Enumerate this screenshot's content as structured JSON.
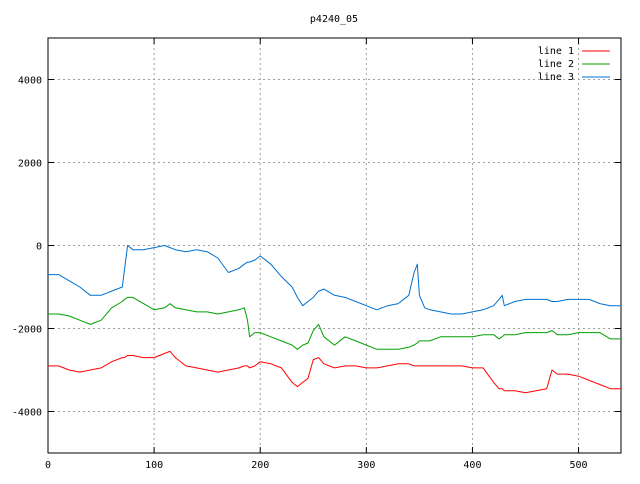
{
  "chart_data": {
    "type": "line",
    "title": "p4240_05",
    "xlabel": "",
    "ylabel": "",
    "xlim": [
      0,
      540
    ],
    "ylim": [
      -5000,
      5000
    ],
    "x_ticks": [
      0,
      100,
      200,
      300,
      400,
      500
    ],
    "y_ticks": [
      -4000,
      -2000,
      0,
      2000,
      4000
    ],
    "grid": true,
    "legend_position": "top-right",
    "x": [
      0,
      10,
      20,
      30,
      40,
      50,
      60,
      70,
      72,
      75,
      80,
      90,
      100,
      110,
      115,
      120,
      130,
      140,
      150,
      160,
      170,
      180,
      185,
      188,
      190,
      195,
      200,
      210,
      220,
      230,
      235,
      240,
      245,
      250,
      255,
      260,
      270,
      280,
      290,
      300,
      310,
      320,
      330,
      340,
      345,
      348,
      350,
      355,
      360,
      370,
      380,
      390,
      400,
      410,
      420,
      425,
      428,
      430,
      440,
      450,
      460,
      470,
      475,
      480,
      490,
      500,
      510,
      520,
      530,
      540
    ],
    "series": [
      {
        "name": "line 1",
        "color": "#ff0000",
        "values": [
          -2900,
          -2900,
          -3000,
          -3050,
          -3000,
          -2950,
          -2800,
          -2700,
          -2700,
          -2650,
          -2650,
          -2700,
          -2700,
          -2600,
          -2550,
          -2700,
          -2900,
          -2950,
          -3000,
          -3050,
          -3000,
          -2950,
          -2900,
          -2900,
          -2950,
          -2900,
          -2800,
          -2850,
          -2950,
          -3300,
          -3400,
          -3300,
          -3200,
          -2750,
          -2700,
          -2850,
          -2950,
          -2900,
          -2900,
          -2950,
          -2950,
          -2900,
          -2850,
          -2850,
          -2900,
          -2900,
          -2900,
          -2900,
          -2900,
          -2900,
          -2900,
          -2900,
          -2950,
          -2950,
          -3300,
          -3450,
          -3450,
          -3500,
          -3500,
          -3550,
          -3500,
          -3450,
          -3000,
          -3100,
          -3100,
          -3150,
          -3250,
          -3350,
          -3450,
          -3450
        ]
      },
      {
        "name": "line 2",
        "color": "#00a000",
        "values": [
          -1650,
          -1650,
          -1700,
          -1800,
          -1900,
          -1800,
          -1500,
          -1350,
          -1300,
          -1250,
          -1250,
          -1400,
          -1550,
          -1500,
          -1400,
          -1500,
          -1550,
          -1600,
          -1600,
          -1650,
          -1600,
          -1550,
          -1500,
          -1800,
          -2200,
          -2100,
          -2100,
          -2200,
          -2300,
          -2400,
          -2500,
          -2400,
          -2350,
          -2050,
          -1900,
          -2200,
          -2400,
          -2200,
          -2300,
          -2400,
          -2500,
          -2500,
          -2500,
          -2450,
          -2400,
          -2350,
          -2300,
          -2300,
          -2300,
          -2200,
          -2200,
          -2200,
          -2200,
          -2150,
          -2150,
          -2250,
          -2200,
          -2150,
          -2150,
          -2100,
          -2100,
          -2100,
          -2050,
          -2150,
          -2150,
          -2100,
          -2100,
          -2100,
          -2250,
          -2250
        ]
      },
      {
        "name": "line 3",
        "color": "#0070d0",
        "values": [
          -700,
          -700,
          -850,
          -1000,
          -1200,
          -1200,
          -1100,
          -1000,
          -600,
          0,
          -100,
          -100,
          -50,
          0,
          -50,
          -100,
          -150,
          -100,
          -150,
          -300,
          -650,
          -550,
          -450,
          -400,
          -400,
          -350,
          -250,
          -450,
          -750,
          -1000,
          -1250,
          -1450,
          -1350,
          -1250,
          -1100,
          -1050,
          -1200,
          -1250,
          -1350,
          -1450,
          -1550,
          -1450,
          -1400,
          -1200,
          -650,
          -450,
          -1200,
          -1500,
          -1550,
          -1600,
          -1650,
          -1650,
          -1600,
          -1550,
          -1450,
          -1300,
          -1200,
          -1450,
          -1350,
          -1300,
          -1300,
          -1300,
          -1350,
          -1350,
          -1300,
          -1300,
          -1300,
          -1400,
          -1450,
          -1450
        ]
      }
    ]
  }
}
